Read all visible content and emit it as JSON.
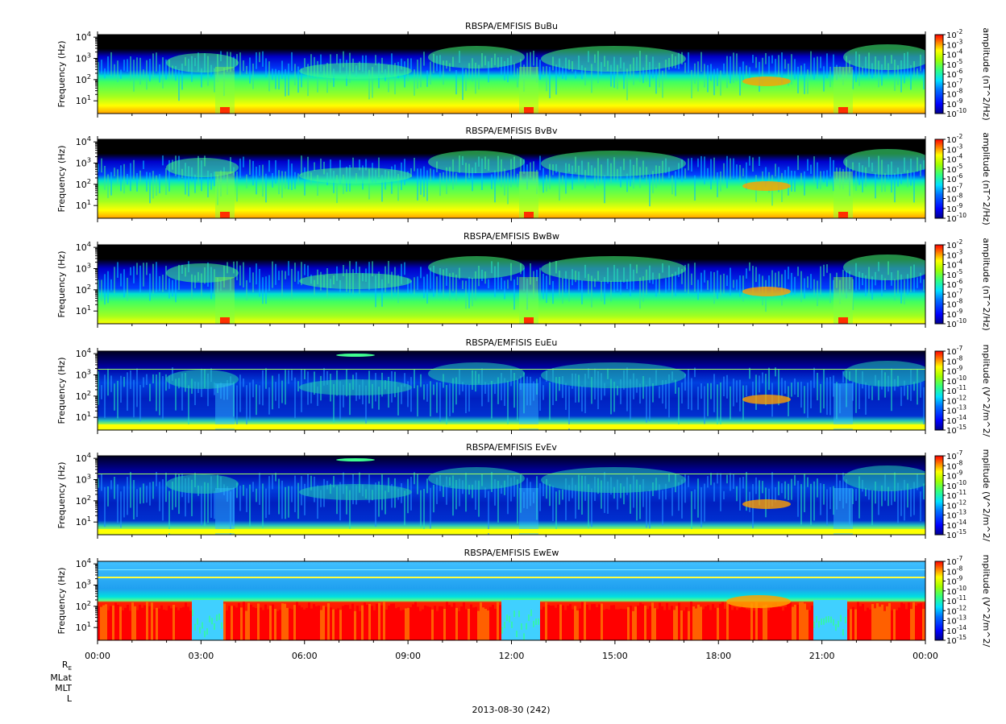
{
  "chart_data": {
    "type": "heatmap",
    "xlabel": "",
    "x_ticks": [
      "00:00",
      "03:00",
      "06:00",
      "09:00",
      "12:00",
      "15:00",
      "18:00",
      "21:00",
      "00:00"
    ],
    "date_label": "2013-08-30 (242)",
    "ephemeris_labels": [
      "R_E",
      "MLat",
      "MLT",
      "L"
    ],
    "panels": [
      {
        "title": "RBSPA/EMFISIS  BuBu",
        "ylabel": "Frequency (Hz)",
        "yticks": [
          "10^1",
          "10^2",
          "10^3",
          "10^4"
        ],
        "colorbar_label": "amplitude (nT^2/Hz)",
        "colorbar_ticks": [
          "10^-2",
          "10^-3",
          "10^-4",
          "10^-5",
          "10^-6",
          "10^-7",
          "10^-8",
          "10^-9",
          "10^-10"
        ],
        "zlim_exp": [
          -10,
          -2
        ],
        "log_scale": true,
        "kind": "B"
      },
      {
        "title": "RBSPA/EMFISIS  BvBv",
        "ylabel": "Frequency (Hz)",
        "yticks": [
          "10^1",
          "10^2",
          "10^3",
          "10^4"
        ],
        "colorbar_label": "amplitude (nT^2/Hz)",
        "colorbar_ticks": [
          "10^-2",
          "10^-3",
          "10^-4",
          "10^-5",
          "10^-6",
          "10^-7",
          "10^-8",
          "10^-9",
          "10^-10"
        ],
        "zlim_exp": [
          -10,
          -2
        ],
        "log_scale": true,
        "kind": "B"
      },
      {
        "title": "RBSPA/EMFISIS  BwBw",
        "ylabel": "Frequency (Hz)",
        "yticks": [
          "10^1",
          "10^2",
          "10^3",
          "10^4"
        ],
        "colorbar_label": "amplitude (nT^2/Hz)",
        "colorbar_ticks": [
          "10^-2",
          "10^-3",
          "10^-4",
          "10^-5",
          "10^-6",
          "10^-7",
          "10^-8",
          "10^-9",
          "10^-10"
        ],
        "zlim_exp": [
          -10,
          -2
        ],
        "log_scale": true,
        "kind": "Bw"
      },
      {
        "title": "RBSPA/EMFISIS  EuEu",
        "ylabel": "Frequency (Hz)",
        "yticks": [
          "10^1",
          "10^2",
          "10^3",
          "10^4"
        ],
        "colorbar_label": "mplitude (V^2/m^2/",
        "colorbar_ticks": [
          "10^-7",
          "10^-8",
          "10^-9",
          "10^-10",
          "10^-11",
          "10^-12",
          "10^-13",
          "10^-14",
          "10^-15"
        ],
        "zlim_exp": [
          -15,
          -7
        ],
        "log_scale": true,
        "kind": "E"
      },
      {
        "title": "RBSPA/EMFISIS  EvEv",
        "ylabel": "Frequency (Hz)",
        "yticks": [
          "10^1",
          "10^2",
          "10^3",
          "10^4"
        ],
        "colorbar_label": "mplitude (V^2/m^2/",
        "colorbar_ticks": [
          "10^-7",
          "10^-8",
          "10^-9",
          "10^-10",
          "10^-11",
          "10^-12",
          "10^-13",
          "10^-14",
          "10^-15"
        ],
        "zlim_exp": [
          -15,
          -7
        ],
        "log_scale": true,
        "kind": "E"
      },
      {
        "title": "RBSPA/EMFISIS  EwEw",
        "ylabel": "Frequency (Hz)",
        "yticks": [
          "10^1",
          "10^2",
          "10^3",
          "10^4"
        ],
        "colorbar_label": "mplitude (V^2/m^2/",
        "colorbar_ticks": [
          "10^-7",
          "10^-8",
          "10^-9",
          "10^-10",
          "10^-11",
          "10^-12",
          "10^-13",
          "10^-14",
          "10^-15"
        ],
        "zlim_exp": [
          -15,
          -7
        ],
        "log_scale": true,
        "kind": "Ew"
      }
    ]
  }
}
